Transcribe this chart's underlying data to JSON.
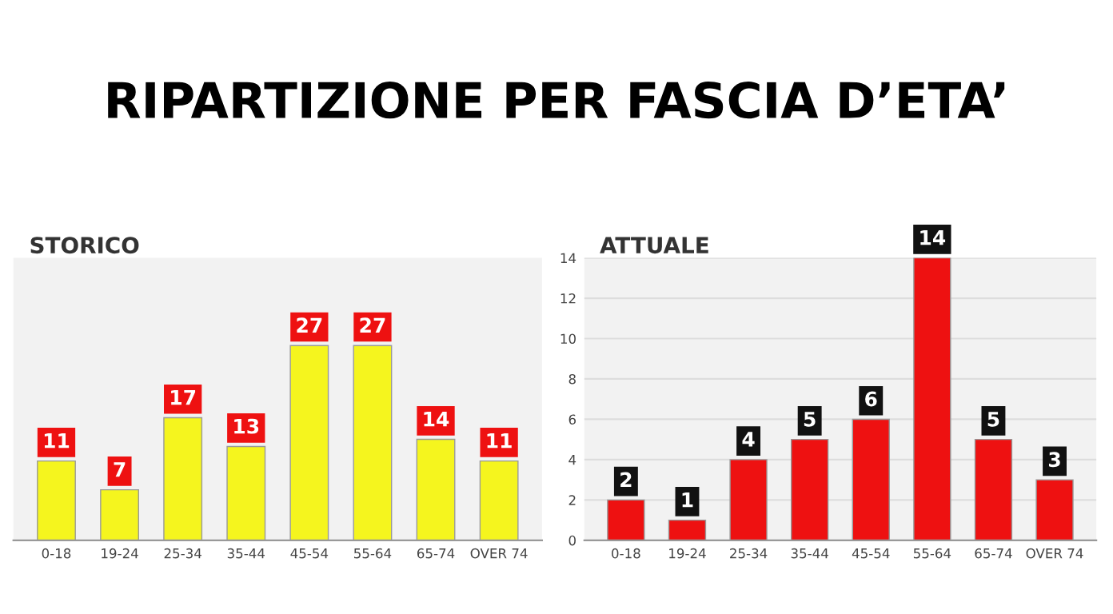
{
  "chart_data": [
    {
      "type": "other",
      "title": "RIPARTIZIONE PER FASCIA D’ETA’"
    },
    {
      "type": "bar",
      "title": "STORICO",
      "categories": [
        "0-18",
        "19-24",
        "25-34",
        "35-44",
        "45-54",
        "55-64",
        "65-74",
        "OVER 74"
      ],
      "values": [
        11,
        7,
        17,
        13,
        27,
        27,
        14,
        11
      ],
      "color": "#f5f51e",
      "data_labels": true,
      "tick_labels": "x",
      "grid": false
    },
    {
      "type": "bar",
      "title": "ATTUALE",
      "categories": [
        "0-18",
        "19-24",
        "25-34",
        "35-44",
        "45-54",
        "55-64",
        "65-74",
        "OVER 74"
      ],
      "values": [
        2,
        1,
        4,
        5,
        6,
        14,
        5,
        3
      ],
      "color": "#ee1111",
      "data_labels": true,
      "ylim": [
        0,
        14
      ],
      "yticks": [
        0,
        2,
        4,
        6,
        8,
        10,
        12,
        14
      ],
      "grid": "y"
    }
  ]
}
